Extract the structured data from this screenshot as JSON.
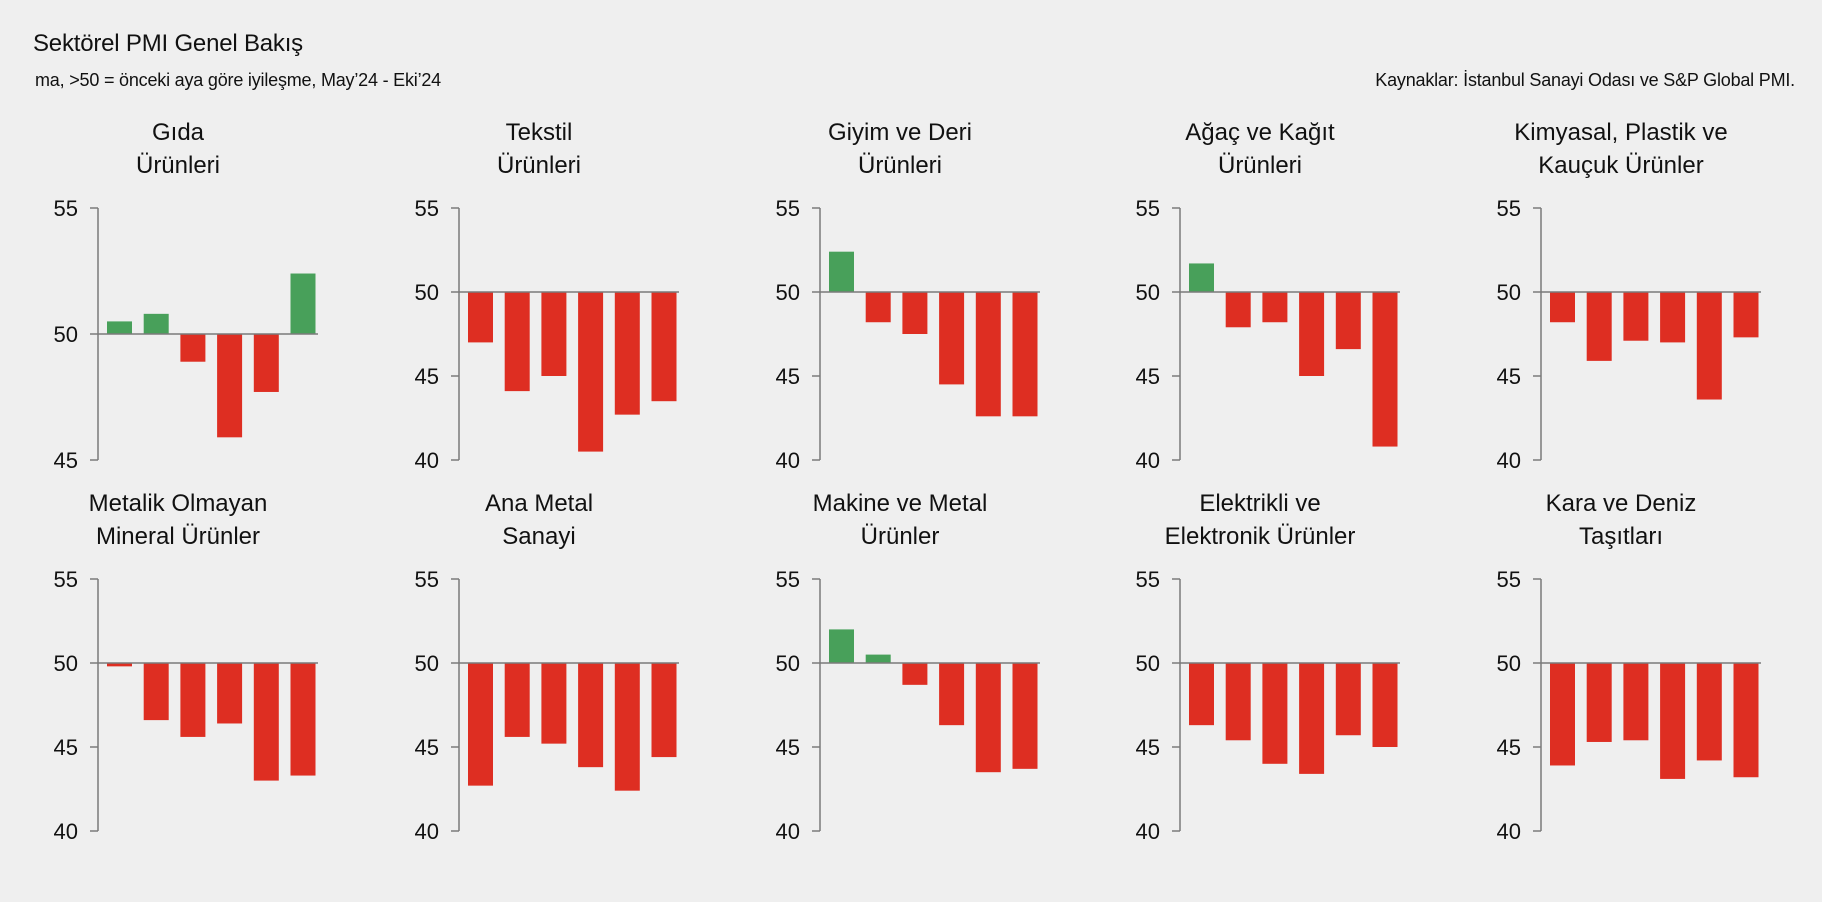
{
  "header": {
    "title": "Sektörel PMI Genel Bakış",
    "subtitle": "ma, >50 = önceki aya göre iyileşme, May’24 - Eki’24",
    "source": "Kaynaklar: İstanbul Sanayi Odası ve S&P Global PMI."
  },
  "colors": {
    "positive": "#48a05a",
    "negative": "#de2e22",
    "axis": "#7a7a7a",
    "background": "#efefef"
  },
  "chart_data": [
    {
      "type": "bar",
      "title": [
        "Gıda",
        "Ürünleri"
      ],
      "baseline": 50,
      "ylim": [
        45,
        55
      ],
      "yticks": [
        45,
        50,
        55
      ],
      "values": [
        50.5,
        50.8,
        48.9,
        45.9,
        47.7,
        52.4
      ]
    },
    {
      "type": "bar",
      "title": [
        "Tekstil",
        "Ürünleri"
      ],
      "baseline": 50,
      "ylim": [
        40,
        55
      ],
      "yticks": [
        40,
        45,
        50,
        55
      ],
      "values": [
        47.0,
        44.1,
        45.0,
        40.5,
        42.7,
        43.5
      ]
    },
    {
      "type": "bar",
      "title": [
        "Giyim ve Deri",
        "Ürünleri"
      ],
      "baseline": 50,
      "ylim": [
        40,
        55
      ],
      "yticks": [
        40,
        45,
        50,
        55
      ],
      "values": [
        52.4,
        48.2,
        47.5,
        44.5,
        42.6,
        42.6
      ]
    },
    {
      "type": "bar",
      "title": [
        "Ağaç ve Kağıt",
        "Ürünleri"
      ],
      "baseline": 50,
      "ylim": [
        40,
        55
      ],
      "yticks": [
        40,
        45,
        50,
        55
      ],
      "values": [
        51.7,
        47.9,
        48.2,
        45.0,
        46.6,
        40.8
      ]
    },
    {
      "type": "bar",
      "title": [
        "Kimyasal, Plastik ve",
        "Kauçuk Ürünler"
      ],
      "baseline": 50,
      "ylim": [
        40,
        55
      ],
      "yticks": [
        40,
        45,
        50,
        55
      ],
      "values": [
        48.2,
        45.9,
        47.1,
        47.0,
        43.6,
        47.3
      ]
    },
    {
      "type": "bar",
      "title": [
        "Metalik Olmayan",
        "Mineral Ürünler"
      ],
      "baseline": 50,
      "ylim": [
        40,
        55
      ],
      "yticks": [
        40,
        45,
        50,
        55
      ],
      "values": [
        49.8,
        46.6,
        45.6,
        46.4,
        43.0,
        43.3
      ]
    },
    {
      "type": "bar",
      "title": [
        "Ana Metal",
        "Sanayi"
      ],
      "baseline": 50,
      "ylim": [
        40,
        55
      ],
      "yticks": [
        40,
        45,
        50,
        55
      ],
      "values": [
        42.7,
        45.6,
        45.2,
        43.8,
        42.4,
        44.4
      ]
    },
    {
      "type": "bar",
      "title": [
        "Makine ve Metal",
        "Ürünler"
      ],
      "baseline": 50,
      "ylim": [
        40,
        55
      ],
      "yticks": [
        40,
        45,
        50,
        55
      ],
      "values": [
        52.0,
        50.5,
        48.7,
        46.3,
        43.5,
        43.7
      ]
    },
    {
      "type": "bar",
      "title": [
        "Elektrikli ve",
        "Elektronik Ürünler"
      ],
      "baseline": 50,
      "ylim": [
        40,
        55
      ],
      "yticks": [
        40,
        45,
        50,
        55
      ],
      "values": [
        46.3,
        45.4,
        44.0,
        43.4,
        45.7,
        45.0
      ]
    },
    {
      "type": "bar",
      "title": [
        "Kara ve Deniz",
        "Taşıtları"
      ],
      "baseline": 50,
      "ylim": [
        40,
        55
      ],
      "yticks": [
        40,
        45,
        50,
        55
      ],
      "values": [
        43.9,
        45.3,
        45.4,
        43.1,
        44.2,
        43.2
      ]
    }
  ]
}
